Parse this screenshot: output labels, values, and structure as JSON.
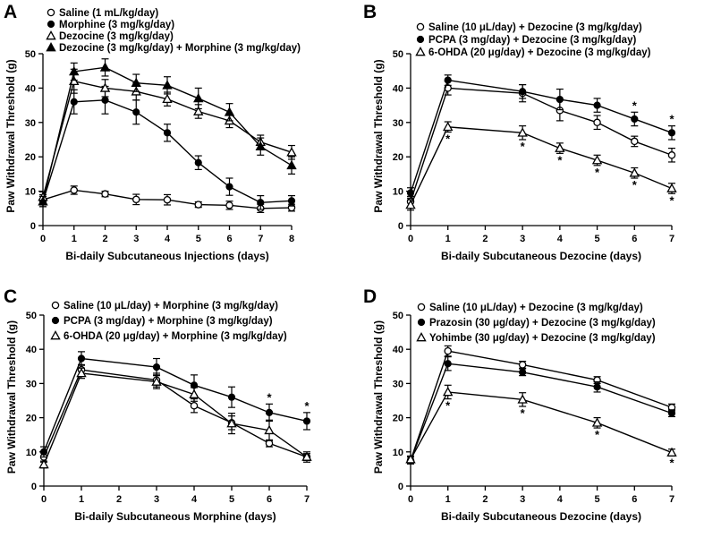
{
  "chart_data": [
    {
      "panel": "A",
      "type": "line",
      "xlabel": "Bi-daily Subcutaneous Injections (days)",
      "ylabel": "Paw Withdrawal Threshold (g)",
      "xlim": [
        0,
        8
      ],
      "ylim": [
        0,
        50
      ],
      "xticks": [
        "0",
        "1",
        "2",
        "3",
        "4",
        "5",
        "6",
        "7",
        "8"
      ],
      "yticks": [
        "0",
        "10",
        "20",
        "30",
        "40",
        "50"
      ],
      "x": [
        0,
        1,
        2,
        3,
        4,
        5,
        6,
        7,
        8
      ],
      "series": [
        {
          "name": "Saline (1 mL/kg/day)",
          "marker": "circle-open",
          "values": [
            7.5,
            10.3,
            9.2,
            7.6,
            7.5,
            6.1,
            5.9,
            5.0,
            5.2
          ],
          "errors": [
            1.5,
            1.2,
            0.8,
            1.5,
            1.5,
            0.8,
            1.2,
            1.2,
            1.0
          ],
          "sig": []
        },
        {
          "name": "Morphine (3 mg/kg/day)",
          "marker": "circle-filled",
          "values": [
            7.0,
            36.0,
            36.5,
            33.0,
            27.0,
            18.3,
            11.3,
            6.7,
            7.2
          ],
          "errors": [
            1.5,
            3.5,
            4.0,
            3.5,
            2.5,
            2.0,
            2.5,
            2.0,
            1.5
          ],
          "sig": []
        },
        {
          "name": "Dezocine (3 mg/kg/day)",
          "marker": "triangle-open",
          "values": [
            8.3,
            42.0,
            40.0,
            39.0,
            36.8,
            33.2,
            30.5,
            24.3,
            21.3
          ],
          "errors": [
            1.5,
            3.5,
            2.5,
            2.5,
            2.0,
            2.0,
            2.0,
            2.0,
            2.0
          ],
          "sig": []
        },
        {
          "name": "Dezocine (3 mg/kg/day) + Morphine (3 mg/kg/day)",
          "marker": "triangle-filled",
          "values": [
            7.0,
            44.8,
            46.0,
            41.5,
            40.8,
            37.0,
            33.0,
            23.0,
            17.5
          ],
          "errors": [
            1.5,
            2.5,
            2.5,
            2.5,
            2.5,
            3.0,
            2.5,
            2.5,
            2.5
          ],
          "sig": []
        }
      ]
    },
    {
      "panel": "B",
      "type": "line",
      "xlabel": "Bi-daily Subcutaneous Dezocine (days)",
      "ylabel": "Paw Withdrawal Threshold (g)",
      "xlim": [
        0,
        7
      ],
      "ylim": [
        0,
        50
      ],
      "xticks": [
        "0",
        "1",
        "2",
        "3",
        "4",
        "5",
        "6",
        "7"
      ],
      "yticks": [
        "0",
        "10",
        "20",
        "30",
        "40",
        "50"
      ],
      "x": [
        0,
        1,
        3,
        4,
        5,
        6,
        7
      ],
      "series": [
        {
          "name": "Saline (10 μL/day) + Dezocine (3 mg/kg/day)",
          "marker": "circle-open",
          "values": [
            7.0,
            40.0,
            38.5,
            33.5,
            30.0,
            24.5,
            20.5
          ],
          "errors": [
            1.5,
            2.0,
            2.5,
            3.0,
            2.0,
            1.5,
            2.0
          ],
          "sig": []
        },
        {
          "name": "PCPA (3 mg/day) + Dezocine (3 mg/kg/day)",
          "marker": "circle-filled",
          "values": [
            9.5,
            42.3,
            39.0,
            36.7,
            35.0,
            31.0,
            27.0
          ],
          "errors": [
            1.5,
            1.5,
            2.0,
            3.0,
            2.0,
            2.0,
            2.0
          ],
          "sig": [
            6,
            7
          ]
        },
        {
          "name": "6-OHDA (20 μg/day) + Dezocine (3 mg/kg/day)",
          "marker": "triangle-open",
          "values": [
            6.0,
            28.7,
            27.0,
            22.5,
            19.0,
            15.3,
            10.8
          ],
          "errors": [
            1.5,
            1.5,
            2.0,
            1.5,
            1.5,
            1.5,
            1.5
          ],
          "sig": [
            1,
            3,
            4,
            5,
            6,
            7
          ]
        }
      ]
    },
    {
      "panel": "C",
      "type": "line",
      "xlabel": "Bi-daily Subcutaneous Morphine (days)",
      "ylabel": "Paw Withdrawal Threshold (g)",
      "xlim": [
        0,
        7
      ],
      "ylim": [
        0,
        50
      ],
      "xticks": [
        "0",
        "1",
        "2",
        "3",
        "4",
        "5",
        "6",
        "7"
      ],
      "yticks": [
        "0",
        "10",
        "20",
        "30",
        "40",
        "50"
      ],
      "x": [
        0,
        1,
        3,
        4,
        5,
        6,
        7
      ],
      "series": [
        {
          "name": "Saline (10 μL/day) + Morphine (3 mg/kg/day)",
          "marker": "circle-open",
          "values": [
            8.5,
            34.0,
            31.0,
            23.5,
            18.5,
            12.5,
            8.5
          ],
          "errors": [
            1.5,
            1.5,
            2.0,
            2.0,
            2.0,
            1.0,
            1.0
          ],
          "sig": []
        },
        {
          "name": "PCPA (3 mg/day) + Morphine (3 mg/kg/day)",
          "marker": "circle-filled",
          "values": [
            10.0,
            37.3,
            34.8,
            29.5,
            26.0,
            21.5,
            19.0
          ],
          "errors": [
            1.5,
            2.0,
            2.5,
            3.0,
            3.0,
            2.5,
            2.5
          ],
          "sig": [
            6,
            7
          ]
        },
        {
          "name": "6-OHDA (20 μg/day) + Morphine (3 mg/kg/day)",
          "marker": "triangle-open",
          "values": [
            6.3,
            33.0,
            30.5,
            26.8,
            18.3,
            16.3,
            8.5
          ],
          "errors": [
            1.0,
            1.5,
            2.0,
            2.0,
            3.0,
            3.0,
            1.5
          ],
          "sig": []
        }
      ]
    },
    {
      "panel": "D",
      "type": "line",
      "xlabel": "Bi-daily Subcutaneous Dezocine (days)",
      "ylabel": "Paw Withdrawal Threshold (g)",
      "xlim": [
        0,
        7
      ],
      "ylim": [
        0,
        50
      ],
      "xticks": [
        "0",
        "1",
        "2",
        "3",
        "4",
        "5",
        "6",
        "7"
      ],
      "yticks": [
        "0",
        "10",
        "20",
        "30",
        "40",
        "50"
      ],
      "x": [
        0,
        1,
        3,
        5,
        7
      ],
      "series": [
        {
          "name": "Saline (10 μL/day) + Dezocine (3 mg/kg/day)",
          "marker": "circle-open",
          "values": [
            7.5,
            39.5,
            35.5,
            31.0,
            23.0
          ],
          "errors": [
            1.0,
            1.5,
            1.0,
            1.0,
            1.0
          ],
          "sig": []
        },
        {
          "name": "Prazosin (30 μg/day) + Dezocine (3 mg/kg/day)",
          "marker": "circle-filled",
          "values": [
            7.5,
            35.8,
            33.3,
            29.0,
            21.3
          ],
          "errors": [
            1.0,
            2.0,
            1.0,
            1.5,
            1.0
          ],
          "sig": []
        },
        {
          "name": "Yohimbe (30 μg/day) + Dezocine (3 mg/kg/day)",
          "marker": "triangle-open",
          "values": [
            7.8,
            27.5,
            25.3,
            18.5,
            9.8
          ],
          "errors": [
            1.0,
            2.0,
            2.0,
            1.5,
            1.0
          ],
          "sig": [
            1,
            3,
            5,
            7
          ]
        }
      ]
    }
  ]
}
